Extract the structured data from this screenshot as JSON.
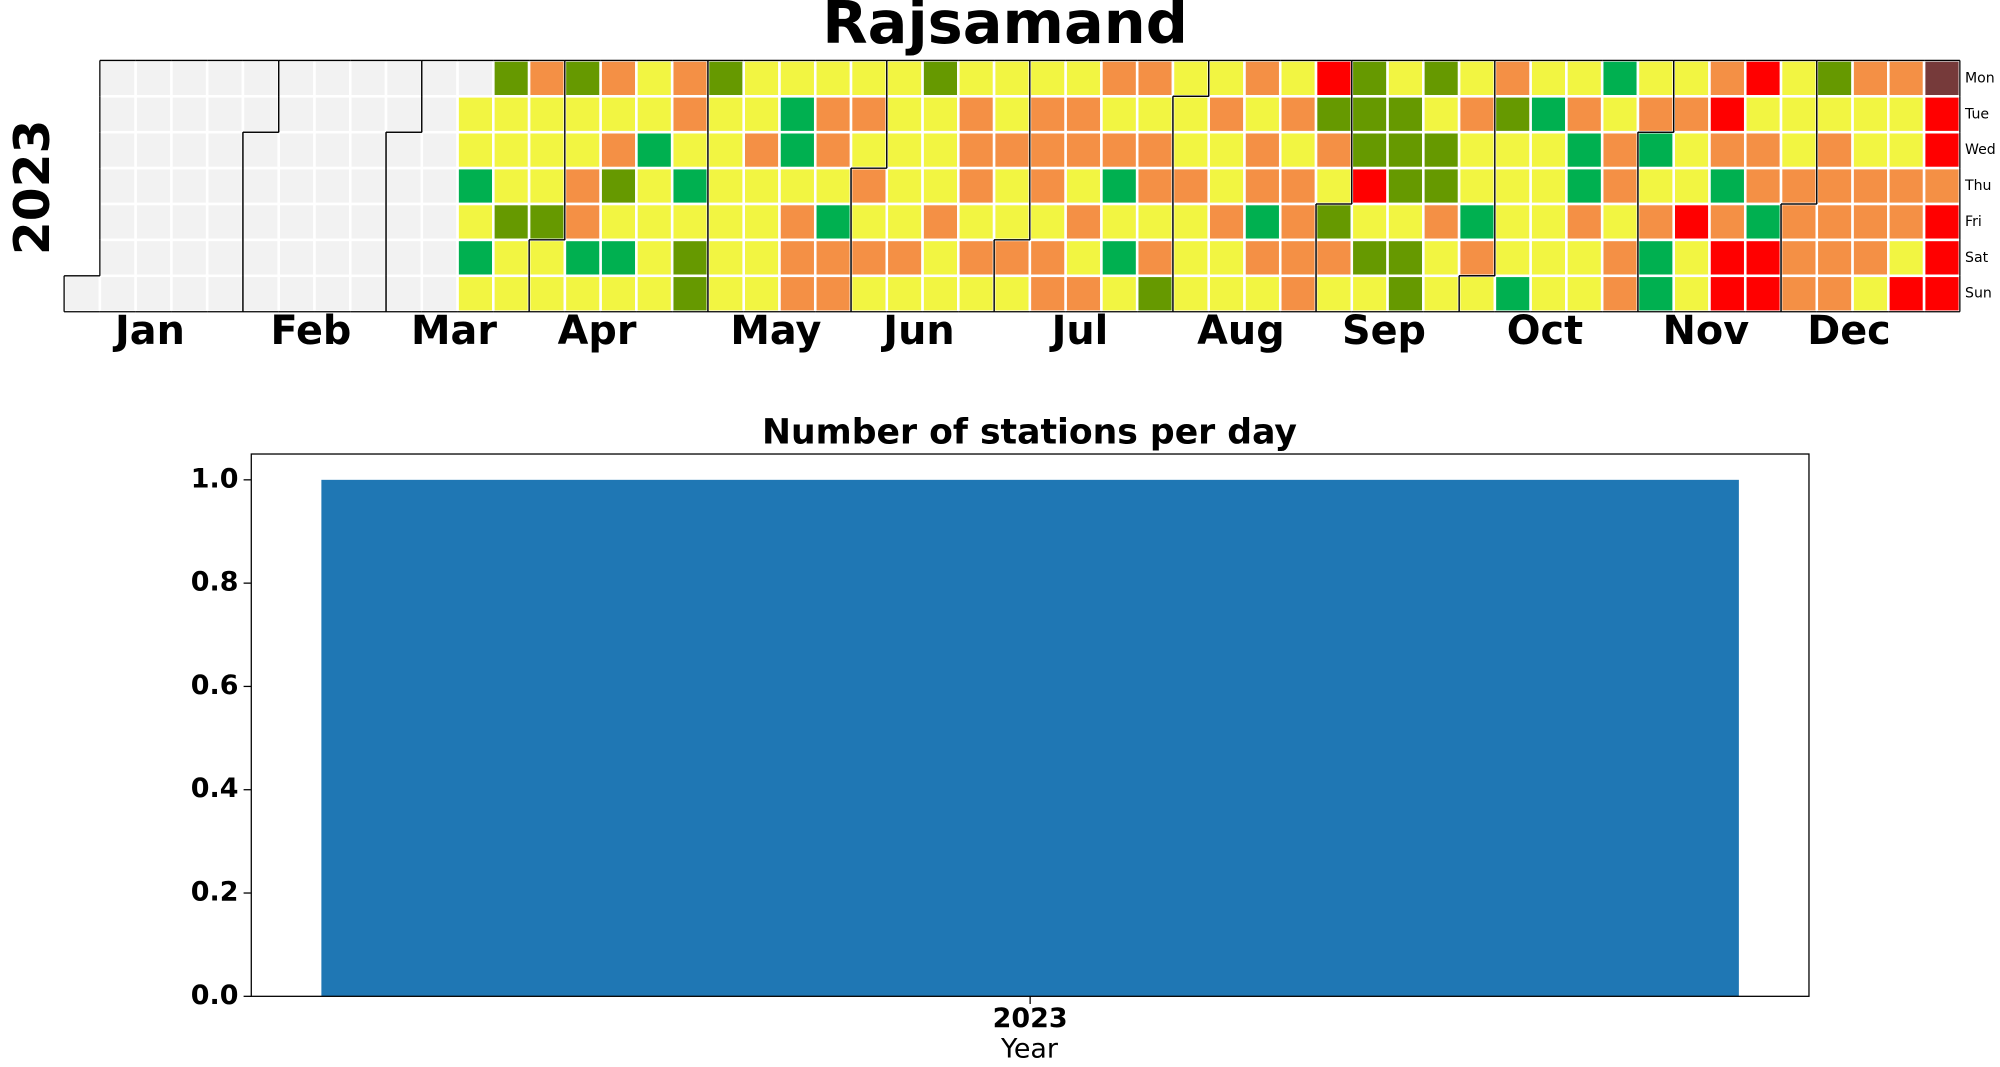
{
  "chart_data": [
    {
      "type": "calendar",
      "title": "Rajsamand",
      "year": "2023",
      "months": [
        "Jan",
        "Feb",
        "Mar",
        "Apr",
        "May",
        "Jun",
        "Jul",
        "Aug",
        "Sep",
        "Oct",
        "Nov",
        "Dec"
      ],
      "day_labels": [
        "Mon",
        "Tue",
        "Wed",
        "Thu",
        "Fri",
        "Sat",
        "Sun"
      ],
      "colors": [
        "#00b050",
        "#669900",
        "#f2f542",
        "#f49045",
        "#ff0000",
        "#763a3a"
      ],
      "empty_color": "#f2f2f2",
      "values": [
        null,
        null,
        null,
        null,
        null,
        null,
        null,
        null,
        null,
        null,
        null,
        null,
        null,
        null,
        null,
        null,
        null,
        null,
        null,
        null,
        null,
        null,
        null,
        null,
        null,
        null,
        null,
        null,
        null,
        null,
        null,
        null,
        null,
        null,
        null,
        null,
        null,
        null,
        null,
        null,
        null,
        null,
        null,
        null,
        null,
        null,
        null,
        null,
        null,
        null,
        null,
        null,
        null,
        null,
        null,
        null,
        null,
        null,
        null,
        null,
        null,
        null,
        null,
        null,
        null,
        null,
        null,
        null,
        null,
        null,
        null,
        null,
        3,
        3,
        1,
        3,
        1,
        3,
        2,
        3,
        3,
        3,
        2,
        3,
        3,
        4,
        3,
        3,
        3,
        2,
        3,
        3,
        2,
        3,
        3,
        4,
        4,
        1,
        3,
        4,
        3,
        4,
        2,
        3,
        1,
        3,
        3,
        3,
        1,
        3,
        3,
        3,
        3,
        4,
        4,
        3,
        1,
        3,
        2,
        2,
        2,
        3,
        3,
        3,
        3,
        3,
        3,
        3,
        3,
        4,
        3,
        3,
        3,
        3,
        3,
        1,
        1,
        3,
        4,
        4,
        4,
        3,
        4,
        4,
        3,
        1,
        4,
        4,
        3,
        4,
        3,
        4,
        3,
        4,
        3,
        3,
        3,
        3,
        3,
        3,
        4,
        3,
        2,
        3,
        3,
        3,
        4,
        3,
        3,
        3,
        4,
        4,
        4,
        3,
        4,
        3,
        3,
        3,
        4,
        3,
        3,
        4,
        3,
        3,
        4,
        4,
        4,
        3,
        4,
        4,
        3,
        4,
        4,
        3,
        4,
        3,
        4,
        4,
        3,
        4,
        1,
        3,
        1,
        3,
        4,
        3,
        4,
        4,
        3,
        4,
        2,
        3,
        3,
        3,
        4,
        3,
        3,
        3,
        3,
        4,
        3,
        3,
        4,
        3,
        3,
        4,
        3,
        4,
        4,
        1,
        4,
        3,
        3,
        4,
        3,
        4,
        4,
        4,
        4,
        5,
        2,
        4,
        3,
        2,
        4,
        3,
        2,
        2,
        2,
        5,
        3,
        2,
        3,
        3,
        2,
        2,
        2,
        3,
        2,
        2,
        2,
        3,
        2,
        2,
        4,
        3,
        3,
        3,
        4,
        3,
        3,
        1,
        4,
        3,
        4,
        2,
        3,
        3,
        3,
        3,
        1,
        3,
        1,
        3,
        3,
        3,
        3,
        3,
        3,
        4,
        1,
        1,
        4,
        3,
        3,
        1,
        3,
        4,
        4,
        3,
        4,
        4,
        3,
        4,
        1,
        3,
        4,
        1,
        1,
        3,
        4,
        3,
        3,
        5,
        3,
        3,
        4,
        5,
        4,
        1,
        4,
        5,
        5,
        5,
        3,
        4,
        4,
        1,
        5,
        5,
        3,
        3,
        3,
        4,
        4,
        4,
        4,
        2,
        3,
        4,
        4,
        4,
        4,
        4,
        4,
        3,
        3,
        4,
        4,
        4,
        3,
        4,
        3,
        3,
        4,
        4,
        3,
        5,
        6,
        5,
        5,
        4,
        5,
        5,
        5
      ]
    },
    {
      "type": "bar",
      "title": "Number of stations per day",
      "xlabel": "Year",
      "categories": [
        "2023"
      ],
      "values": [
        1.0
      ],
      "color": "#1f77b4",
      "ylim": [
        0,
        1.05
      ],
      "yticks": [
        {
          "value": 0,
          "label": "0.0"
        },
        {
          "value": 0.2,
          "label": "0.2"
        },
        {
          "value": 0.4,
          "label": "0.4"
        },
        {
          "value": 0.6,
          "label": "0.6"
        },
        {
          "value": 0.8,
          "label": "0.8"
        },
        {
          "value": 1.0,
          "label": "1.0"
        }
      ]
    }
  ]
}
